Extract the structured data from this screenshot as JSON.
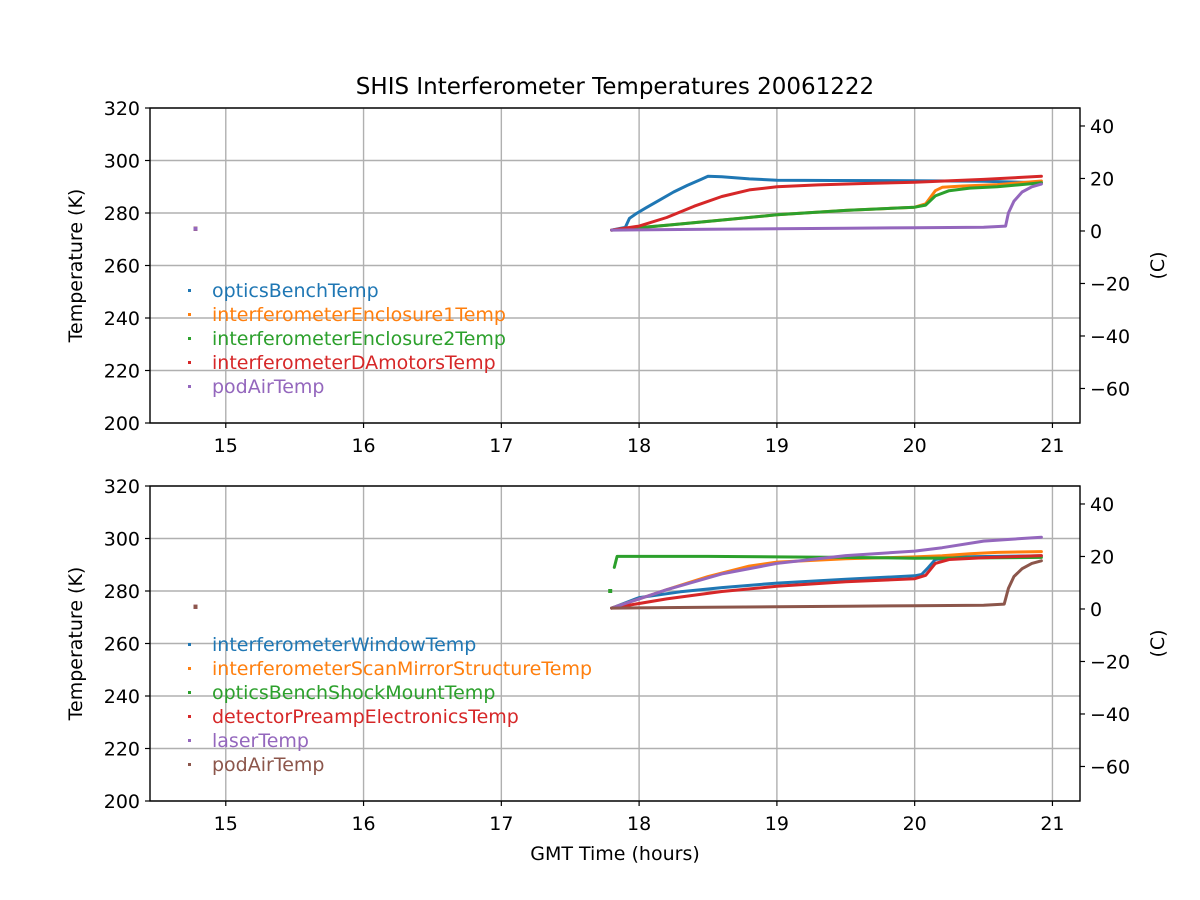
{
  "figure": {
    "title": "SHIS Interferometer Temperatures 20061222",
    "xlabel": "GMT Time (hours)"
  },
  "chart_data": [
    {
      "type": "line",
      "ylabel": "Temperature (K)",
      "y2label": "(C)",
      "xlim": [
        14.45,
        21.2
      ],
      "ylim": [
        200,
        320
      ],
      "y2lim": [
        -73.15,
        46.85
      ],
      "xticks": [
        15,
        16,
        17,
        18,
        19,
        20,
        21
      ],
      "yticks": [
        200,
        220,
        240,
        260,
        280,
        300,
        320
      ],
      "y2ticks": [
        -60,
        -40,
        -20,
        0,
        20,
        40
      ],
      "grid": true,
      "legend_position": "lower-left",
      "series": [
        {
          "name": "opticsBenchTemp",
          "color": "#1f77b4",
          "x": [
            14.78,
            17.8,
            17.9,
            17.93,
            17.98,
            18.05,
            18.15,
            18.25,
            18.35,
            18.45,
            18.5,
            18.6,
            18.8,
            19.0,
            19.4,
            20.0,
            20.5,
            20.92
          ],
          "y": [
            274,
            273.5,
            274.5,
            278,
            279.8,
            282,
            285,
            288,
            290.5,
            292.8,
            294,
            293.8,
            293,
            292.5,
            292.4,
            292.3,
            292.1,
            291.5
          ]
        },
        {
          "name": "interferometerEnclosure1Temp",
          "color": "#ff7f0e",
          "x": [
            14.78,
            17.8,
            18.2,
            18.5,
            19.0,
            19.5,
            20.0,
            20.08,
            20.15,
            20.2,
            20.35,
            20.6,
            20.92
          ],
          "y": [
            274,
            273.5,
            275.3,
            276.8,
            279.3,
            281,
            282.2,
            283.5,
            288.5,
            289.8,
            290.3,
            290.8,
            292.2
          ]
        },
        {
          "name": "interferometerEnclosure2Temp",
          "color": "#2ca02c",
          "x": [
            14.78,
            17.8,
            18.2,
            18.5,
            19.0,
            19.5,
            20.0,
            20.08,
            20.15,
            20.25,
            20.4,
            20.6,
            20.92
          ],
          "y": [
            274,
            273.5,
            275.3,
            276.8,
            279.3,
            281,
            282.2,
            283,
            286.5,
            288.5,
            289.5,
            290,
            291.5
          ]
        },
        {
          "name": "interferometerDAmotorsTemp",
          "color": "#d62728",
          "x": [
            14.78,
            17.8,
            18.0,
            18.2,
            18.4,
            18.6,
            18.8,
            19.0,
            19.3,
            19.6,
            20.0,
            20.5,
            20.92
          ],
          "y": [
            274,
            273.5,
            275,
            278.3,
            282.6,
            286.3,
            288.8,
            290,
            290.7,
            291.2,
            291.7,
            292.8,
            294
          ]
        },
        {
          "name": "podAirTemp",
          "color": "#9467bd",
          "x": [
            14.78,
            17.8,
            18.5,
            19.0,
            19.5,
            20.0,
            20.5,
            20.66,
            20.68,
            20.72,
            20.78,
            20.85,
            20.92
          ],
          "y": [
            274,
            273.5,
            273.8,
            274,
            274.2,
            274.4,
            274.6,
            275,
            280,
            284.5,
            288,
            290,
            291
          ]
        }
      ]
    },
    {
      "type": "line",
      "ylabel": "Temperature (K)",
      "y2label": "(C)",
      "xlim": [
        14.45,
        21.2
      ],
      "ylim": [
        200,
        320
      ],
      "y2lim": [
        -73.15,
        46.85
      ],
      "xticks": [
        15,
        16,
        17,
        18,
        19,
        20,
        21
      ],
      "yticks": [
        200,
        220,
        240,
        260,
        280,
        300,
        320
      ],
      "y2ticks": [
        -60,
        -40,
        -20,
        0,
        20,
        40
      ],
      "grid": true,
      "legend_position": "lower-left",
      "series": [
        {
          "name": "interferometerWindowTemp",
          "color": "#1f77b4",
          "x": [
            14.78,
            17.8,
            18.0,
            18.3,
            18.6,
            19.0,
            19.5,
            20.0,
            20.05,
            20.1,
            20.15,
            20.3,
            20.6,
            20.92
          ],
          "y": [
            274,
            273.5,
            277.5,
            279.7,
            281.3,
            283,
            284.5,
            285.8,
            286.3,
            289,
            292,
            293,
            293.2,
            293.4
          ]
        },
        {
          "name": "interferometerScanMirrorStructureTemp",
          "color": "#ff7f0e",
          "x": [
            14.78,
            17.8,
            18.2,
            18.5,
            18.8,
            19.0,
            19.5,
            20.0,
            20.2,
            20.4,
            20.6,
            20.92
          ],
          "y": [
            274,
            273.5,
            280.5,
            285.5,
            289.5,
            291,
            292.3,
            293,
            293.4,
            294.2,
            294.7,
            295
          ]
        },
        {
          "name": "opticsBenchShockMountTemp",
          "color": "#2ca02c",
          "x": [
            17.79,
            17.82,
            17.84,
            18.5,
            19.0,
            19.5,
            20.0,
            20.5,
            20.92
          ],
          "y": [
            280,
            289,
            293.2,
            293.2,
            293,
            292.8,
            292.5,
            292.6,
            292.8
          ]
        },
        {
          "name": "detectorPreampElectronicsTemp",
          "color": "#d62728",
          "x": [
            14.78,
            17.8,
            18.2,
            18.6,
            19.0,
            19.5,
            20.0,
            20.08,
            20.15,
            20.25,
            20.5,
            20.92
          ],
          "y": [
            274,
            273.5,
            277,
            279.8,
            281.8,
            283.5,
            284.7,
            286,
            290.5,
            292,
            292.7,
            293.5
          ]
        },
        {
          "name": "laserTemp",
          "color": "#9467bd",
          "x": [
            14.78,
            17.8,
            18.2,
            18.6,
            19.0,
            19.5,
            20.0,
            20.2,
            20.5,
            20.92
          ],
          "y": [
            274,
            273.5,
            280.5,
            286.5,
            290.5,
            293.5,
            295.2,
            296.5,
            299,
            300.5
          ]
        },
        {
          "name": "podAirTemp",
          "color": "#8c564b",
          "x": [
            14.78,
            17.8,
            18.5,
            19.0,
            19.5,
            20.0,
            20.5,
            20.65,
            20.68,
            20.72,
            20.78,
            20.85,
            20.92
          ],
          "y": [
            274,
            273.5,
            273.8,
            274,
            274.2,
            274.4,
            274.6,
            275,
            281,
            285.5,
            288.5,
            290.5,
            291.5
          ]
        }
      ]
    }
  ]
}
